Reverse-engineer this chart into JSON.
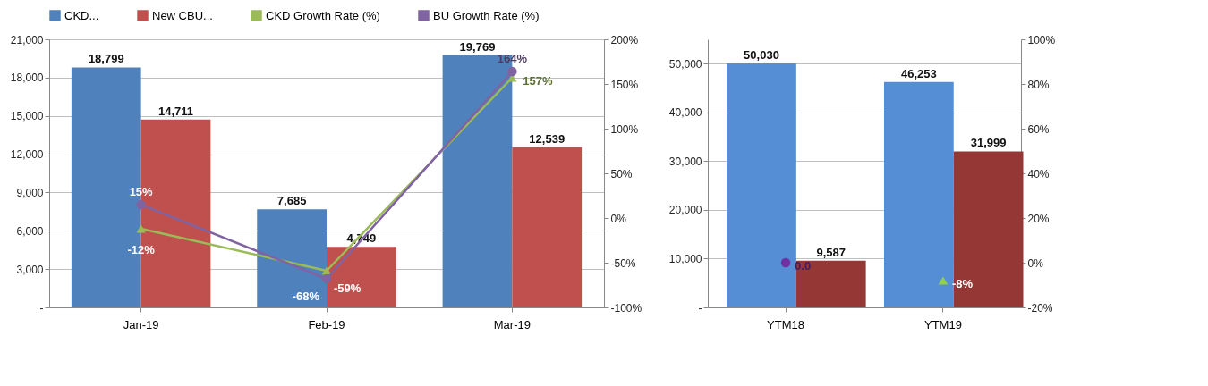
{
  "chart_data": [
    {
      "type": "bar",
      "categories": [
        "Jan-19",
        "Feb-19",
        "Mar-19"
      ],
      "series": [
        {
          "name": "CKD...",
          "color": "#4f81bd",
          "values": [
            18799,
            7685,
            19769
          ],
          "value_labels": [
            "18,799",
            "7,685",
            "19,769"
          ]
        },
        {
          "name": "New CBU...",
          "color": "#c0504d",
          "values": [
            14711,
            4749,
            12539
          ],
          "value_labels": [
            "14,711",
            "4,749",
            "12,539"
          ]
        },
        {
          "name": "CKD Growth Rate (%)",
          "type": "line",
          "axis": "y2",
          "marker": "triangle",
          "color": "#9bbb59",
          "values": [
            -12,
            -59,
            157
          ],
          "value_labels": [
            "-12%",
            "-59%",
            "157%"
          ]
        },
        {
          "name": "BU Growth Rate (%)",
          "type": "line",
          "axis": "y2",
          "marker": "circle",
          "color": "#8064a2",
          "values": [
            15,
            -68,
            164
          ],
          "value_labels": [
            "15%",
            "-68%",
            "164%"
          ]
        }
      ],
      "ylim": [
        0,
        21000
      ],
      "yticks": [
        {
          "value": 0,
          "label": "-"
        },
        {
          "value": 3000,
          "label": "3,000"
        },
        {
          "value": 6000,
          "label": "6,000"
        },
        {
          "value": 9000,
          "label": "9,000"
        },
        {
          "value": 12000,
          "label": "12,000"
        },
        {
          "value": 15000,
          "label": "15,000"
        },
        {
          "value": 18000,
          "label": "18,000"
        },
        {
          "value": 21000,
          "label": "21,000"
        }
      ],
      "y2lim": [
        -100,
        200
      ],
      "y2ticks": [
        {
          "value": -100,
          "label": "-100%"
        },
        {
          "value": -50,
          "label": "-50%"
        },
        {
          "value": 0,
          "label": "0%"
        },
        {
          "value": 50,
          "label": "50%"
        },
        {
          "value": 100,
          "label": "100%"
        },
        {
          "value": 150,
          "label": "150%"
        },
        {
          "value": 200,
          "label": "200%"
        }
      ],
      "grid": "y",
      "legend": "top"
    },
    {
      "type": "bar",
      "categories": [
        "YTM18",
        "YTM19"
      ],
      "series": [
        {
          "color": "#558ed5",
          "values": [
            50030,
            46253
          ],
          "value_labels": [
            "50,030",
            "46,253"
          ]
        },
        {
          "color": "#953735",
          "values": [
            9587,
            31999
          ],
          "value_labels": [
            "9,587",
            "31,999"
          ]
        },
        {
          "type": "scatter",
          "axis": "y2",
          "marker": "triangle",
          "color": "#92d050",
          "values": [
            null,
            -8
          ],
          "value_labels": [
            null,
            "-8%"
          ]
        },
        {
          "type": "scatter",
          "axis": "y2",
          "marker": "circle",
          "color": "#7030a0",
          "values": [
            0,
            null
          ],
          "value_labels": [
            "0.0",
            null
          ]
        }
      ],
      "ylim": [
        0,
        55000
      ],
      "yticks": [
        {
          "value": 0,
          "label": "-"
        },
        {
          "value": 10000,
          "label": "10,000"
        },
        {
          "value": 20000,
          "label": "20,000"
        },
        {
          "value": 30000,
          "label": "30,000"
        },
        {
          "value": 40000,
          "label": "40,000"
        },
        {
          "value": 50000,
          "label": "50,000"
        }
      ],
      "y2lim": [
        -20,
        100
      ],
      "y2ticks": [
        {
          "value": -20,
          "label": "-20%"
        },
        {
          "value": 0,
          "label": "0%"
        },
        {
          "value": 20,
          "label": "20%"
        },
        {
          "value": 40,
          "label": "40%"
        },
        {
          "value": 60,
          "label": "60%"
        },
        {
          "value": 80,
          "label": "80%"
        },
        {
          "value": 100,
          "label": "100%"
        }
      ],
      "grid": "y"
    }
  ]
}
